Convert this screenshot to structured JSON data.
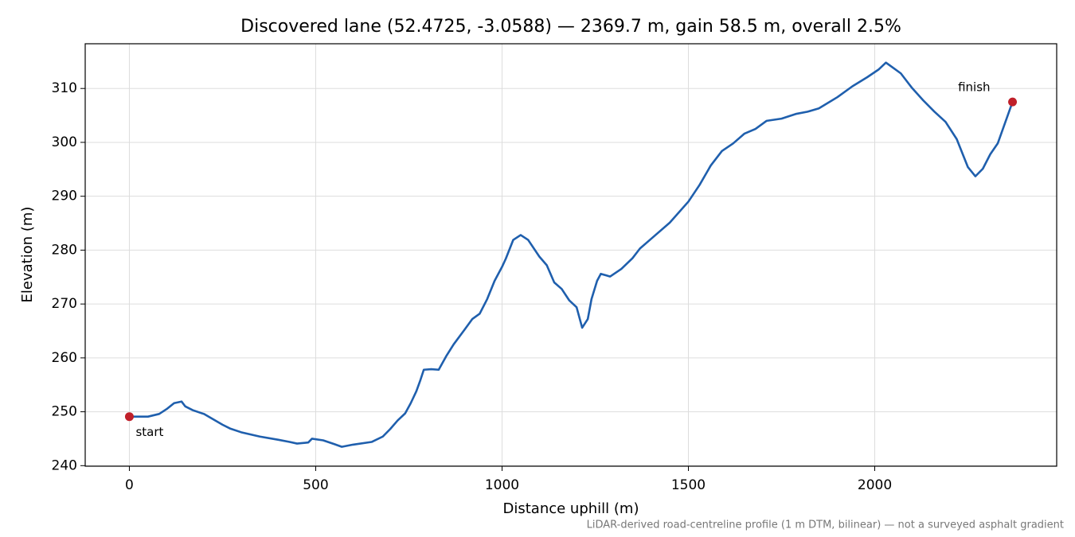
{
  "chart_data": {
    "type": "line",
    "title": "Discovered lane (52.4725, -3.0588) — 2369.7 m, gain 58.5 m, overall 2.5%",
    "x_label": "Distance uphill (m)",
    "y_label": "Elevation (m)",
    "caption": "LiDAR-derived road-centreline profile (1 m DTM, bilinear) — not a surveyed asphalt gradient",
    "xlim": [
      -118.5,
      2488.2
    ],
    "ylim": [
      239.9,
      318.3
    ],
    "xticks": [
      0,
      500,
      1000,
      1500,
      2000
    ],
    "yticks": [
      240,
      250,
      260,
      270,
      280,
      290,
      300,
      310
    ],
    "grid": true,
    "x": [
      0,
      50,
      80,
      100,
      120,
      140,
      150,
      170,
      200,
      250,
      270,
      300,
      350,
      400,
      430,
      450,
      480,
      490,
      520,
      550,
      570,
      600,
      650,
      680,
      700,
      720,
      740,
      755,
      770,
      780,
      790,
      810,
      830,
      850,
      870,
      900,
      920,
      940,
      960,
      980,
      1000,
      1010,
      1030,
      1050,
      1070,
      1100,
      1120,
      1140,
      1160,
      1180,
      1200,
      1215,
      1230,
      1240,
      1255,
      1265,
      1290,
      1320,
      1350,
      1370,
      1400,
      1450,
      1500,
      1530,
      1560,
      1590,
      1620,
      1650,
      1680,
      1710,
      1750,
      1790,
      1820,
      1850,
      1900,
      1940,
      1980,
      2010,
      2030,
      2050,
      2070,
      2100,
      2130,
      2160,
      2190,
      2220,
      2250,
      2270,
      2290,
      2310,
      2330,
      2369.7
    ],
    "series": [
      {
        "color": "#1f5fad",
        "values": [
          249.1,
          249.1,
          249.6,
          250.5,
          251.6,
          251.9,
          251.0,
          250.3,
          249.6,
          247.6,
          246.9,
          246.2,
          245.4,
          244.8,
          244.4,
          244.1,
          244.3,
          245.0,
          244.7,
          244.0,
          243.5,
          243.9,
          244.4,
          245.4,
          246.8,
          248.4,
          249.7,
          251.6,
          253.8,
          255.7,
          257.8,
          257.9,
          257.8,
          260.3,
          262.5,
          265.3,
          267.2,
          268.2,
          270.9,
          274.3,
          276.9,
          278.4,
          281.9,
          282.8,
          281.9,
          278.8,
          277.2,
          274.0,
          272.8,
          270.7,
          269.4,
          265.6,
          267.2,
          270.9,
          274.3,
          275.6,
          275.1,
          276.5,
          278.5,
          280.3,
          282.1,
          285.1,
          289.0,
          292.1,
          295.7,
          298.4,
          299.8,
          301.6,
          302.5,
          304.0,
          304.4,
          305.3,
          305.7,
          306.3,
          308.4,
          310.4,
          312.1,
          313.5,
          314.8,
          313.8,
          312.8,
          310.1,
          307.8,
          305.7,
          303.8,
          300.6,
          295.4,
          293.7,
          295.1,
          297.8,
          299.8,
          307.5
        ]
      }
    ],
    "points": [
      {
        "label": "start",
        "x": 0,
        "y": 249.1
      },
      {
        "label": "finish",
        "x": 2369.7,
        "y": 307.5
      }
    ],
    "point_color": "#c0202a"
  }
}
